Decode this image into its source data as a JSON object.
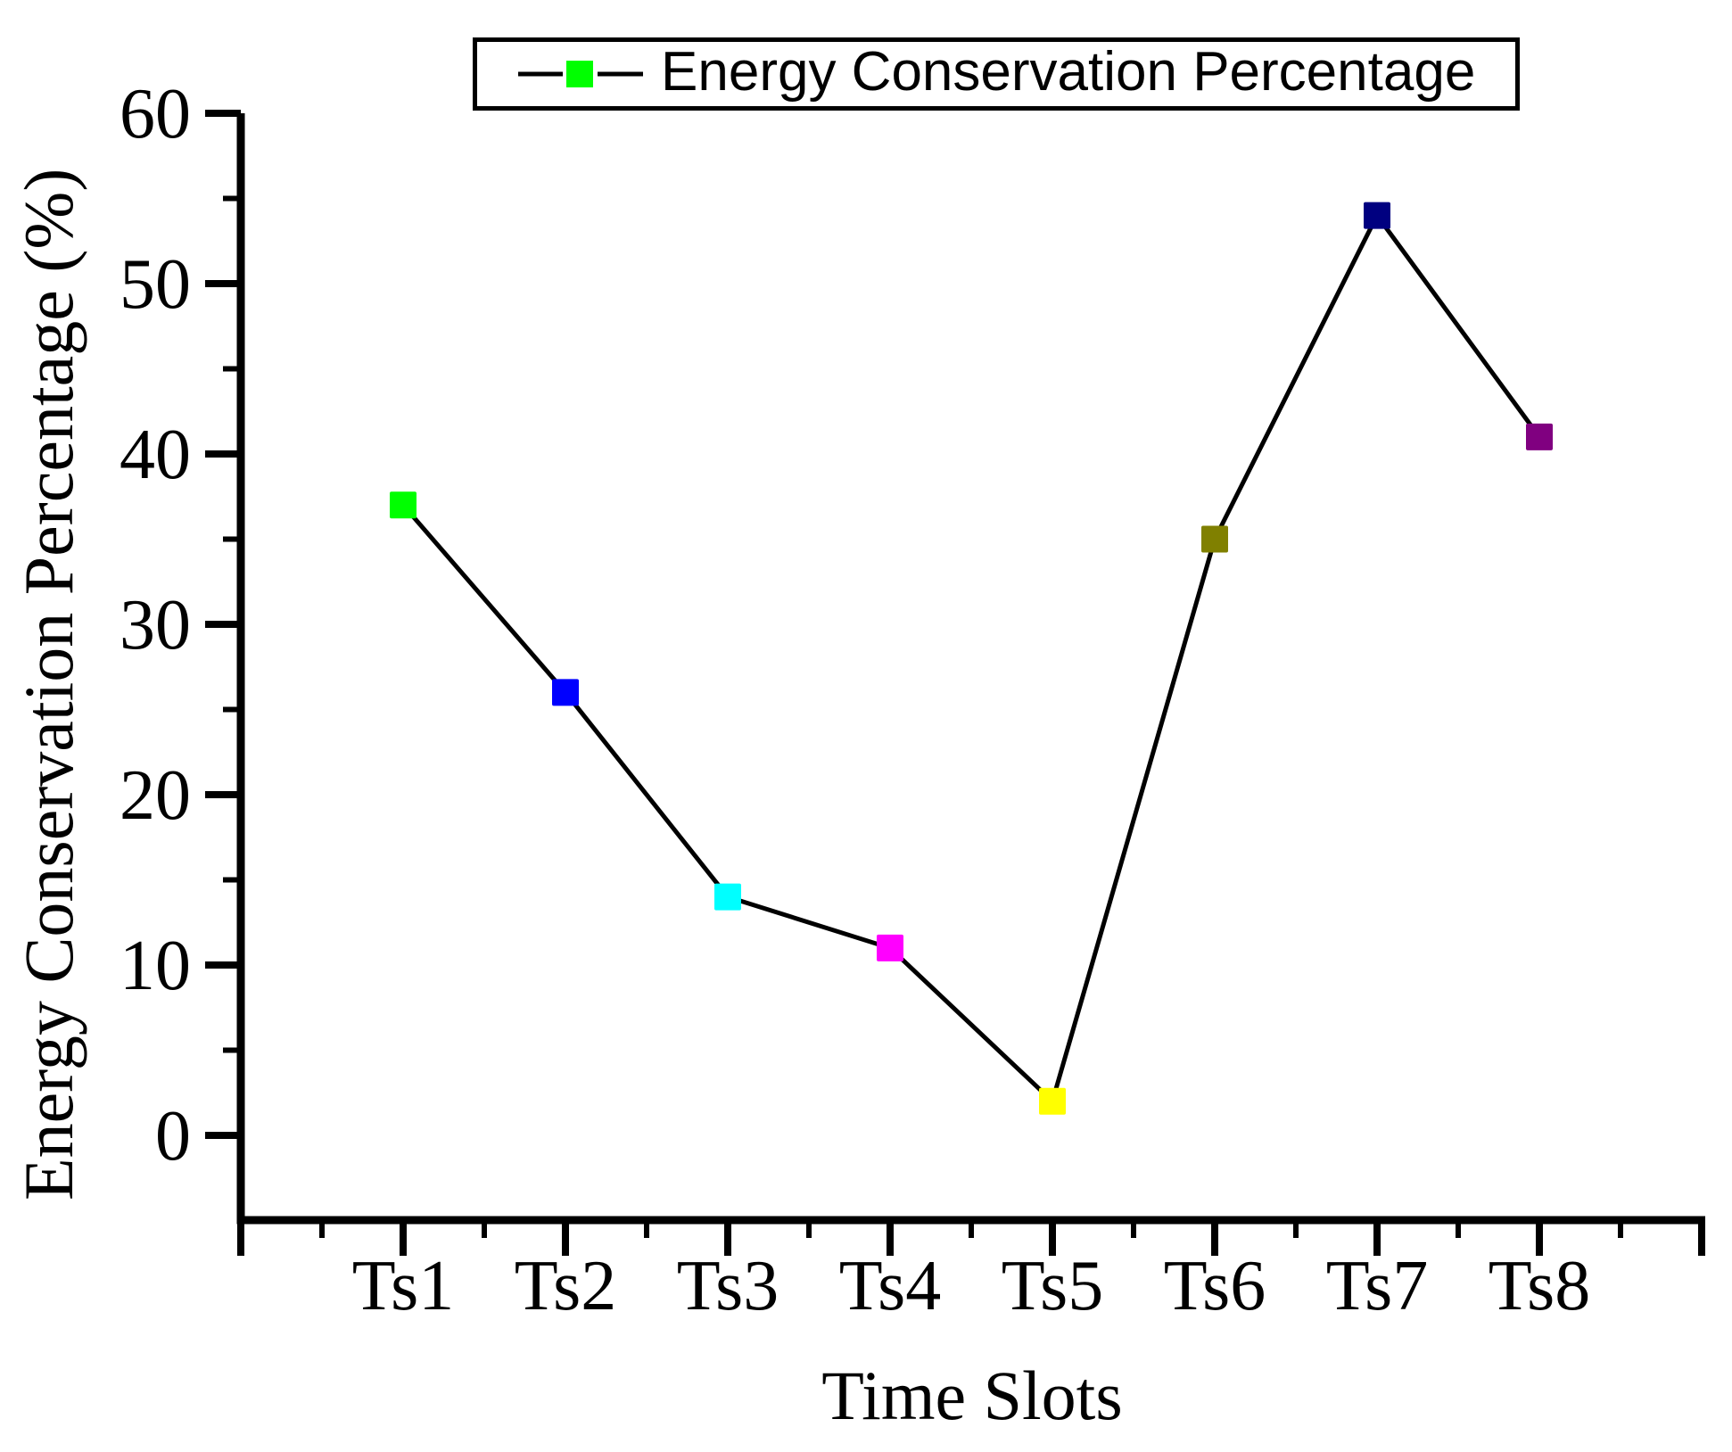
{
  "legend": {
    "label": "Energy Conservation Percentage",
    "marker_color": "#00FF00",
    "line_color": "#000000"
  },
  "axes": {
    "xlabel": "Time Slots",
    "ylabel": "Energy Conservation Percentage (%)"
  },
  "chart_data": {
    "type": "line",
    "categories": [
      "Ts1",
      "Ts2",
      "Ts3",
      "Ts4",
      "Ts5",
      "Ts6",
      "Ts7",
      "Ts8"
    ],
    "values": [
      37,
      26,
      14,
      11,
      2,
      35,
      54,
      41
    ],
    "marker_colors": [
      "#00FF00",
      "#0000FF",
      "#00FFFF",
      "#FF00FF",
      "#FFFF00",
      "#808000",
      "#000080",
      "#800080"
    ],
    "marker_shape": "square",
    "line_color": "#000000",
    "title": "",
    "xlabel": "Time Slots",
    "ylabel": "Energy Conservation Percentage (%)",
    "ylim": [
      -5,
      60
    ],
    "yticks": [
      0,
      10,
      20,
      30,
      40,
      50,
      60
    ],
    "y_minor_step": 5,
    "x_minor_ticks": true,
    "grid": false,
    "legend": [
      "Energy Conservation Percentage"
    ],
    "legend_position": "top-center",
    "axis_color": "#000000",
    "background_color": "#FFFFFF"
  }
}
